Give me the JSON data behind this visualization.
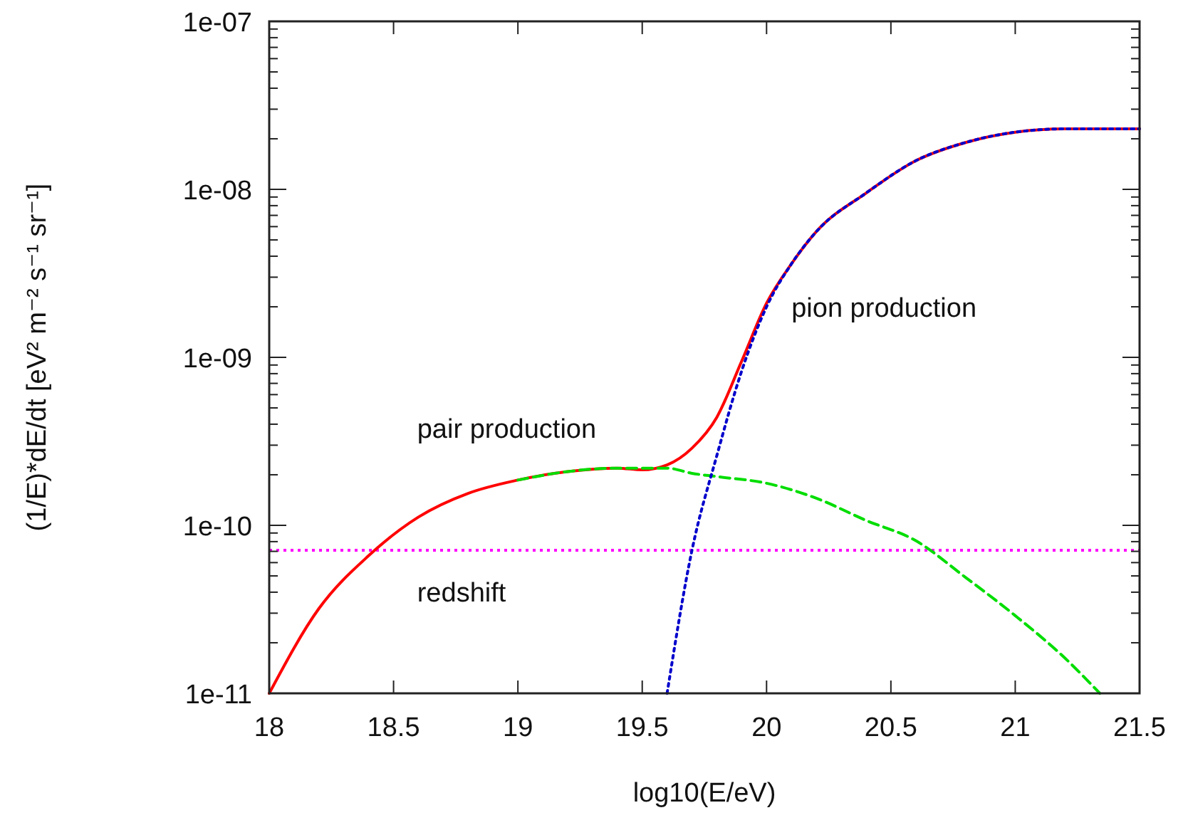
{
  "chart_data": {
    "type": "line",
    "xlabel": "log10(E/eV)",
    "ylabel": "(1/E)*dE/dt [eV² m⁻² s⁻¹ sr⁻¹]",
    "log": "y",
    "xlim": [
      18,
      21.5
    ],
    "xticks": [
      18,
      18.5,
      19,
      19.5,
      20,
      20.5,
      21,
      21.5
    ],
    "ylim": [
      1e-11,
      1e-07
    ],
    "yticks": [
      {
        "value": 1e-11,
        "label": "1e-11"
      },
      {
        "value": 1e-10,
        "label": "1e-10"
      },
      {
        "value": 1e-09,
        "label": "1e-09"
      },
      {
        "value": 1e-08,
        "label": "1e-08"
      },
      {
        "value": 1e-07,
        "label": "1e-07"
      }
    ],
    "grid": false,
    "series": [
      {
        "color": "#ff0000",
        "line_style": "solid",
        "x": [
          18,
          18.2,
          18.4,
          18.6,
          18.8,
          19,
          19.2,
          19.4,
          19.5,
          19.6,
          19.7,
          19.8,
          19.9,
          20,
          20.1,
          20.2,
          20.4,
          20.6,
          20.8,
          21,
          21.2,
          21.5
        ],
        "values": [
          1e-11,
          3.2e-11,
          6.6e-11,
          1.12e-10,
          1.55e-10,
          1.86e-10,
          2.09e-10,
          2.19e-10,
          2.14e-10,
          2.29e-10,
          2.88e-10,
          4.4e-10,
          9.5e-10,
          2.1e-09,
          3.6e-09,
          5.6e-09,
          9.5e-09,
          1.48e-08,
          1.9e-08,
          2.19e-08,
          2.29e-08,
          2.29e-08
        ]
      },
      {
        "color": "#00dd00",
        "line_style": "dashed",
        "x": [
          19,
          19.2,
          19.4,
          19.6,
          19.7,
          19.8,
          20,
          20.2,
          20.4,
          20.6,
          20.8,
          21,
          21.2,
          21.34
        ],
        "values": [
          1.86e-10,
          2.09e-10,
          2.19e-10,
          2.19e-10,
          2.04e-10,
          1.95e-10,
          1.78e-10,
          1.45e-10,
          1.07e-10,
          8.1e-11,
          4.9e-11,
          2.9e-11,
          1.62e-11,
          1e-11
        ]
      },
      {
        "color": "#0000cc",
        "line_style": "dotted",
        "x": [
          19.6,
          19.7,
          19.8,
          19.9,
          20,
          20.1,
          20.2,
          20.4,
          20.6,
          20.8,
          21,
          21.2,
          21.5
        ],
        "values": [
          1e-11,
          7.1e-11,
          2.6e-10,
          8.3e-10,
          2e-09,
          3.6e-09,
          5.6e-09,
          9.5e-09,
          1.48e-08,
          1.9e-08,
          2.19e-08,
          2.29e-08,
          2.29e-08
        ]
      }
    ],
    "ref_lines": [
      {
        "axis": "y",
        "value": 7.1e-11,
        "label": "redshift",
        "color": "#ff00ff",
        "line_style": "dotted"
      }
    ],
    "annotations": [
      "pair production",
      "pion production"
    ]
  }
}
